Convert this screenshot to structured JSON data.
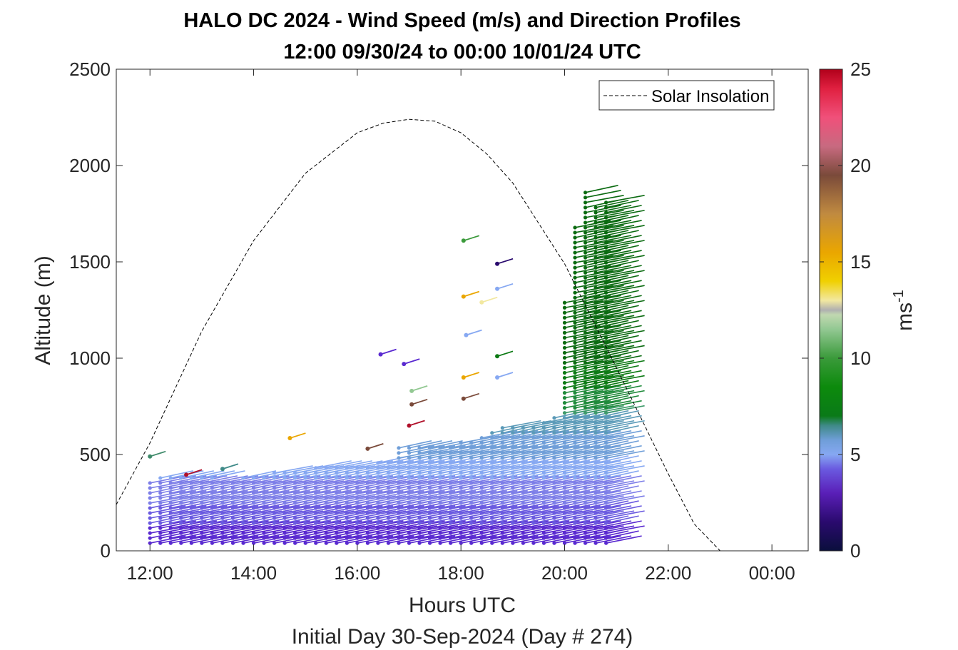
{
  "chart_data": {
    "type": "line",
    "title": "HALO DC 2024 - Wind Speed (m/s) and Direction Profiles",
    "subtitle": "12:00 09/30/24 to 00:00 10/01/24  UTC",
    "xlabel": "Hours UTC",
    "xlabel2": "Initial Day 30-Sep-2024 (Day # 274)",
    "ylabel": "Altitude (m)",
    "xlim": [
      11.35,
      24.7
    ],
    "ylim": [
      0,
      2500
    ],
    "x_tick_labels": [
      "12:00",
      "14:00",
      "16:00",
      "18:00",
      "20:00",
      "22:00",
      "00:00"
    ],
    "x_tick_values": [
      12,
      14,
      16,
      18,
      20,
      22,
      24
    ],
    "y_ticks": [
      0,
      500,
      1000,
      1500,
      2000,
      2500
    ],
    "legend": {
      "entries": [
        "Solar Insolation"
      ],
      "position": "top-right"
    },
    "series": [
      {
        "name": "Solar Insolation",
        "style": "dashed",
        "color": "#000000",
        "x": [
          11.35,
          12.0,
          13.0,
          14.0,
          15.0,
          16.0,
          16.5,
          17.0,
          17.5,
          18.0,
          18.5,
          19.0,
          20.0,
          21.0,
          22.0,
          22.5,
          23.0,
          23.2,
          24.7
        ],
        "y": [
          240,
          560,
          1140,
          1610,
          1960,
          2170,
          2220,
          2240,
          2230,
          2170,
          2060,
          1910,
          1490,
          950,
          400,
          140,
          0,
          0,
          0
        ]
      }
    ],
    "colorbar": {
      "label": "ms",
      "label_sup": "-1",
      "ticks": [
        0,
        5,
        10,
        15,
        20,
        25
      ],
      "range": [
        0,
        25
      ]
    },
    "wind_barbs": {
      "description": "wind speed/direction profiles by time and altitude",
      "profiles": [
        {
          "t": 12.0,
          "top": 370
        },
        {
          "t": 12.2,
          "top": 380
        },
        {
          "t": 12.4,
          "top": 380
        },
        {
          "t": 12.6,
          "top": 380
        },
        {
          "t": 12.8,
          "top": 380
        },
        {
          "t": 13.0,
          "top": 380
        },
        {
          "t": 13.2,
          "top": 380
        },
        {
          "t": 13.4,
          "top": 375
        },
        {
          "t": 13.6,
          "top": 375
        },
        {
          "t": 13.8,
          "top": 380
        },
        {
          "t": 14.0,
          "top": 385
        },
        {
          "t": 14.2,
          "top": 385
        },
        {
          "t": 14.4,
          "top": 410
        },
        {
          "t": 14.6,
          "top": 420
        },
        {
          "t": 14.8,
          "top": 420
        },
        {
          "t": 15.0,
          "top": 425
        },
        {
          "t": 15.2,
          "top": 430
        },
        {
          "t": 15.4,
          "top": 430
        },
        {
          "t": 15.6,
          "top": 445
        },
        {
          "t": 15.8,
          "top": 450
        },
        {
          "t": 16.0,
          "top": 450
        },
        {
          "t": 16.2,
          "top": 455
        },
        {
          "t": 16.4,
          "top": 470
        },
        {
          "t": 16.6,
          "top": 470
        },
        {
          "t": 16.8,
          "top": 550
        },
        {
          "t": 17.0,
          "top": 550
        },
        {
          "t": 17.2,
          "top": 550
        },
        {
          "t": 17.4,
          "top": 555
        },
        {
          "t": 17.6,
          "top": 555
        },
        {
          "t": 17.8,
          "top": 555
        },
        {
          "t": 18.0,
          "top": 580
        },
        {
          "t": 18.2,
          "top": 580
        },
        {
          "t": 18.4,
          "top": 610
        },
        {
          "t": 18.6,
          "top": 630
        },
        {
          "t": 18.8,
          "top": 640
        },
        {
          "t": 19.0,
          "top": 645
        },
        {
          "t": 19.2,
          "top": 650
        },
        {
          "t": 19.4,
          "top": 660
        },
        {
          "t": 19.6,
          "top": 680
        },
        {
          "t": 19.8,
          "top": 690
        },
        {
          "t": 20.0,
          "top": 1290
        },
        {
          "t": 20.2,
          "top": 1680
        },
        {
          "t": 20.4,
          "top": 1870
        },
        {
          "t": 20.6,
          "top": 1800
        },
        {
          "t": 20.8,
          "top": 1820
        }
      ]
    }
  }
}
